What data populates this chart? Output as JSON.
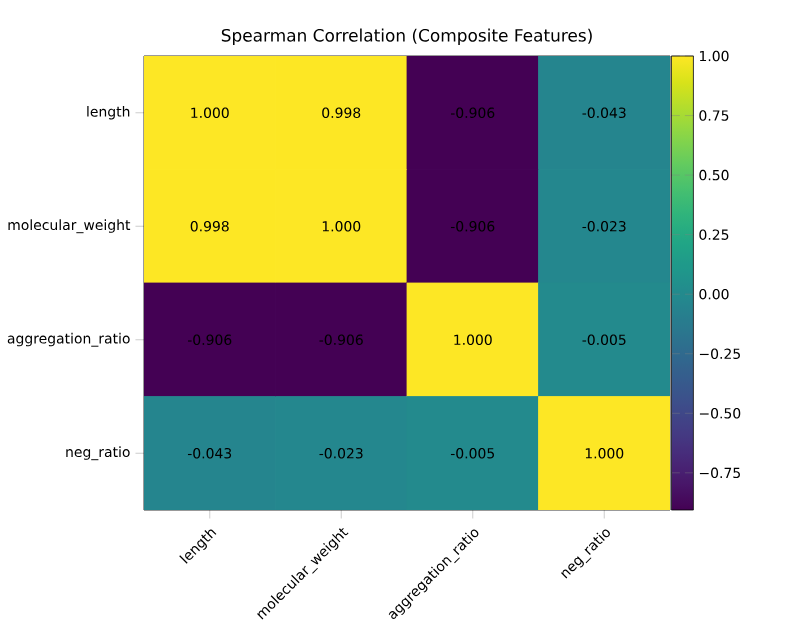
{
  "chart_data": {
    "type": "heatmap",
    "title": "Spearman Correlation (Composite Features)",
    "categories": [
      "length",
      "molecular_weight",
      "aggregation_ratio",
      "neg_ratio"
    ],
    "y_categories": [
      "length",
      "molecular_weight",
      "aggregation_ratio",
      "neg_ratio"
    ],
    "cells": [
      [
        1.0,
        0.998,
        -0.906,
        -0.043
      ],
      [
        0.998,
        1.0,
        -0.906,
        -0.023
      ],
      [
        -0.906,
        -0.906,
        1.0,
        -0.005
      ],
      [
        -0.043,
        -0.023,
        -0.005,
        1.0
      ]
    ],
    "cell_labels": [
      [
        "1.000",
        "0.998",
        "-0.906",
        "-0.043"
      ],
      [
        "0.998",
        "1.000",
        "-0.906",
        "-0.023"
      ],
      [
        "-0.906",
        "-0.906",
        "1.000",
        "-0.005"
      ],
      [
        "-0.043",
        "-0.023",
        "-0.005",
        "1.000"
      ]
    ],
    "clim": [
      -0.906,
      1.0
    ],
    "cticks": [
      {
        "value": -0.75,
        "label": "−0.75"
      },
      {
        "value": -0.5,
        "label": "−0.50"
      },
      {
        "value": -0.25,
        "label": "−0.25"
      },
      {
        "value": 0,
        "label": "0.00"
      },
      {
        "value": 0.25,
        "label": "0.25"
      },
      {
        "value": 0.5,
        "label": "0.50"
      },
      {
        "value": 0.75,
        "label": "0.75"
      },
      {
        "value": 1.0,
        "label": "1.00"
      }
    ]
  }
}
